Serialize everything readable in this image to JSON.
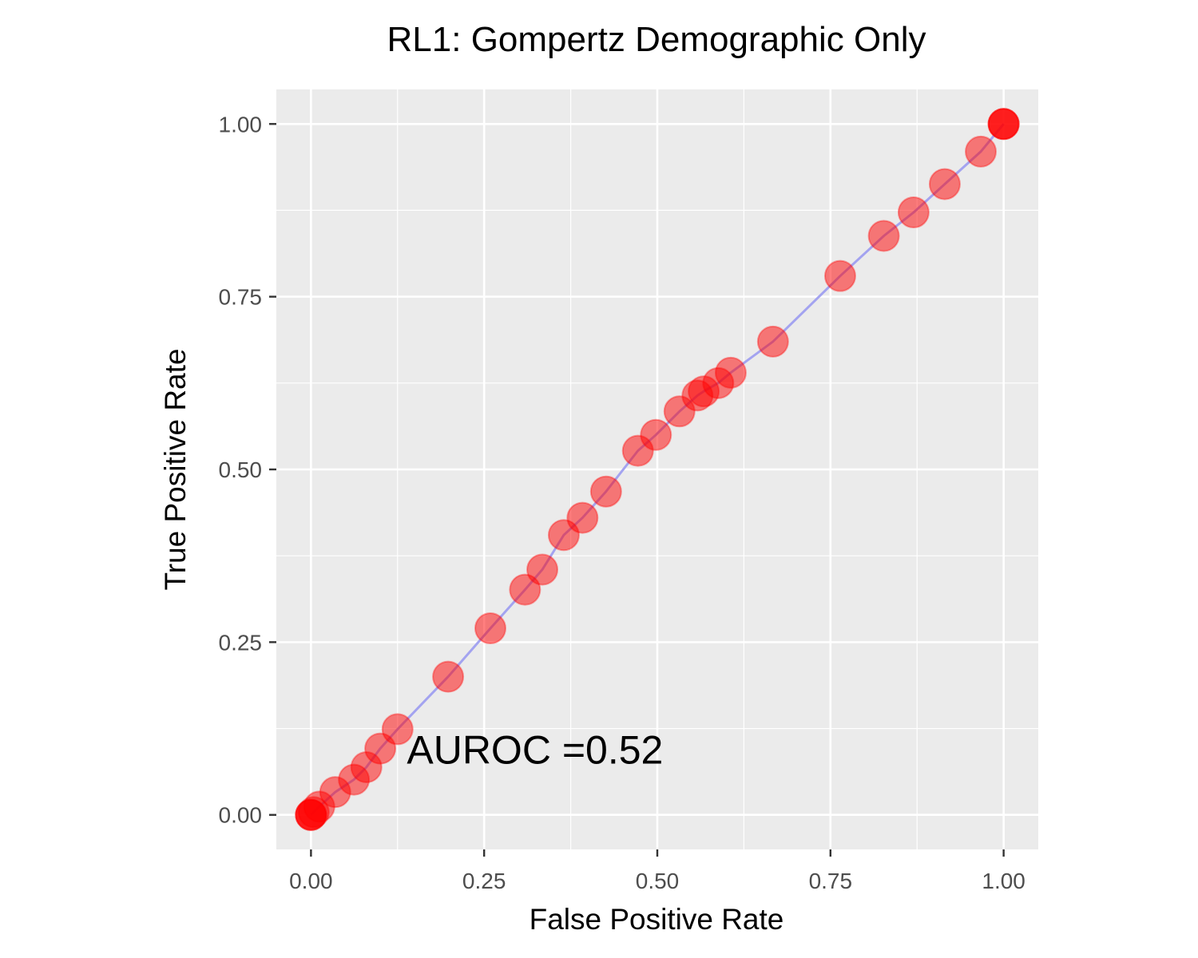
{
  "chart_data": {
    "type": "line",
    "title": "RL1: Gompertz Demographic Only",
    "xlabel": "False Positive Rate",
    "ylabel": "True Positive Rate",
    "xlim": [
      -0.05,
      1.05
    ],
    "ylim": [
      -0.05,
      1.05
    ],
    "x_ticks": [
      "0.00",
      "0.25",
      "0.50",
      "0.75",
      "1.00"
    ],
    "y_ticks": [
      "0.00",
      "0.25",
      "0.50",
      "0.75",
      "1.00"
    ],
    "grid": true,
    "legend": "none",
    "annotation": "AUROC =0.52",
    "annotation_position": [
      0.52,
      0.095
    ],
    "colors": {
      "panel_background": "#ebebeb",
      "grid": "#ffffff",
      "line": "#a3a3f0",
      "point": "#ff0000",
      "point_alpha": 0.5
    },
    "series": [
      {
        "x": [
          0.0,
          0.0,
          0.0,
          0.004,
          0.012,
          0.035,
          0.062,
          0.08,
          0.1,
          0.125,
          0.198,
          0.259,
          0.309,
          0.334,
          0.365,
          0.392,
          0.426,
          0.472,
          0.498,
          0.532,
          0.558,
          0.567,
          0.588,
          0.606,
          0.667,
          0.764,
          0.827,
          0.87,
          0.915,
          0.967,
          1.0,
          1.0,
          1.0
        ],
        "y": [
          0.0,
          0.0,
          0.0,
          0.004,
          0.012,
          0.033,
          0.051,
          0.069,
          0.096,
          0.124,
          0.2,
          0.27,
          0.326,
          0.355,
          0.405,
          0.43,
          0.468,
          0.527,
          0.55,
          0.584,
          0.607,
          0.613,
          0.625,
          0.64,
          0.685,
          0.78,
          0.838,
          0.872,
          0.913,
          0.96,
          1.0,
          1.0,
          1.0
        ]
      }
    ]
  }
}
